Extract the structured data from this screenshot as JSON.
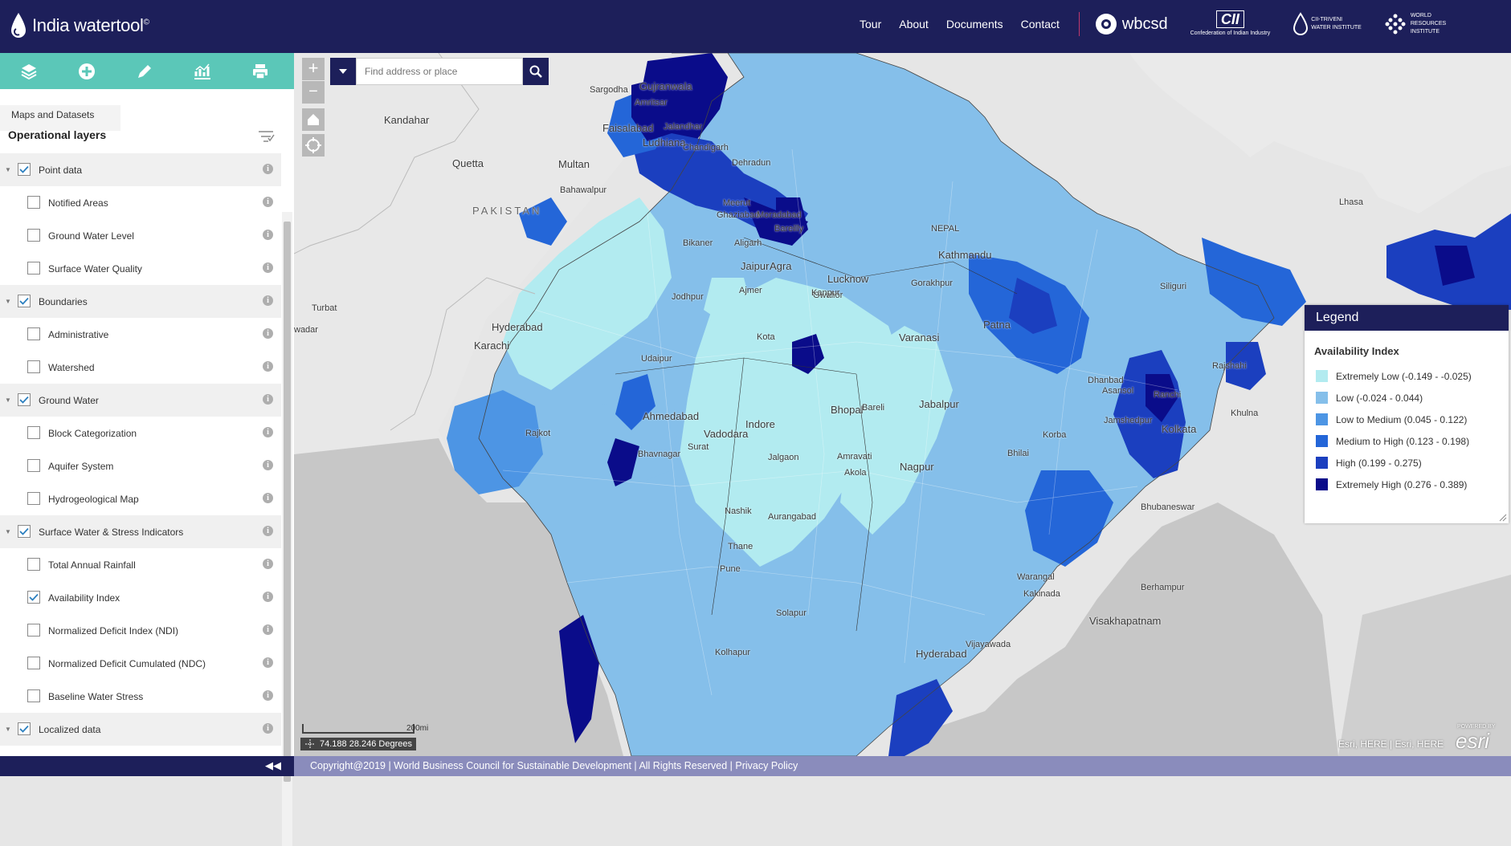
{
  "header": {
    "logo_text": "India watertool",
    "logo_mark": "©",
    "nav": [
      "Tour",
      "About",
      "Documents",
      "Contact"
    ],
    "partners": [
      {
        "name": "wbcsd",
        "sub": ""
      },
      {
        "name": "CII",
        "sub": "Confederation of Indian Industry"
      },
      {
        "name": "CII-TRIVENI",
        "sub": "WATER INSTITUTE"
      },
      {
        "name": "WORLD",
        "sub": "RESOURCES INSTITUTE"
      }
    ]
  },
  "toolbar": {
    "buttons": [
      "layers-icon",
      "add-icon",
      "edit-icon",
      "chart-icon",
      "print-icon"
    ]
  },
  "panel": {
    "tab_label": "Maps and Datasets",
    "title": "Operational layers",
    "layers": [
      {
        "label": "Point data",
        "type": "group",
        "checked": true
      },
      {
        "label": "Notified Areas",
        "type": "child",
        "checked": false
      },
      {
        "label": "Ground Water Level",
        "type": "child",
        "checked": false
      },
      {
        "label": "Surface Water Quality",
        "type": "child",
        "checked": false
      },
      {
        "label": "Boundaries",
        "type": "group",
        "checked": true
      },
      {
        "label": "Administrative",
        "type": "child",
        "checked": false
      },
      {
        "label": "Watershed",
        "type": "child",
        "checked": false
      },
      {
        "label": "Ground Water",
        "type": "group",
        "checked": true
      },
      {
        "label": "Block Categorization",
        "type": "child",
        "checked": false
      },
      {
        "label": "Aquifer System",
        "type": "child",
        "checked": false
      },
      {
        "label": "Hydrogeological Map",
        "type": "child",
        "checked": false
      },
      {
        "label": "Surface Water & Stress Indicators",
        "type": "group",
        "checked": true
      },
      {
        "label": "Total Annual Rainfall",
        "type": "child",
        "checked": false
      },
      {
        "label": "Availability Index",
        "type": "child",
        "checked": true
      },
      {
        "label": "Normalized Deficit Index (NDI)",
        "type": "child",
        "checked": false
      },
      {
        "label": "Normalized Deficit Cumulated (NDC)",
        "type": "child",
        "checked": false
      },
      {
        "label": "Baseline Water Stress",
        "type": "child",
        "checked": false
      },
      {
        "label": "Localized data",
        "type": "group",
        "checked": true
      }
    ]
  },
  "search": {
    "placeholder": "Find address or place"
  },
  "legend": {
    "title": "Legend",
    "subtitle": "Availability Index",
    "items": [
      {
        "label": "Extremely Low (-0.149 - -0.025)",
        "color": "#b2ebf0"
      },
      {
        "label": "Low (-0.024 - 0.044)",
        "color": "#85bfea"
      },
      {
        "label": "Low to Medium (0.045 - 0.122)",
        "color": "#4d95e4"
      },
      {
        "label": "Medium to High (0.123 - 0.198)",
        "color": "#2466d8"
      },
      {
        "label": "High (0.199 - 0.275)",
        "color": "#1b3fbf"
      },
      {
        "label": "Extremely High (0.276 - 0.389)",
        "color": "#0a0c8a"
      }
    ]
  },
  "map_labels": {
    "places": [
      "Sargodha",
      "Gujranwala",
      "Amritsar",
      "Kandahar",
      "Faisalabad",
      "Jalandhar",
      "Ludhiana",
      "Chandigarh",
      "Quetta",
      "Multan",
      "Dehradun",
      "Bahawalpur",
      "PAKISTAN",
      "Meerut",
      "Ghaziabad",
      "Moradabad",
      "Bareilly",
      "Lhasa",
      "NEPAL",
      "Bikaner",
      "Aligarh",
      "Kathmandu",
      "Jaipur",
      "Agra",
      "Lucknow",
      "Gorakhpur",
      "Siliguri",
      "Turbat",
      "Jodhpur",
      "Ajmer",
      "Gwalior",
      "Kanpur",
      "Hyderabad",
      "Patna",
      "Varanasi",
      "Karachi",
      "Kota",
      "Udaipur",
      "Rajshahi",
      "Dhanbad",
      "Asansol",
      "Ranchi",
      "Ahmedabad",
      "Bhopal",
      "Jabalpur",
      "Bareli",
      "Jamshedpur",
      "Khulna",
      "Rajkot",
      "Vadodara",
      "Indore",
      "Kolkata",
      "Korba",
      "Bhavnagar",
      "Surat",
      "Jalgaon",
      "Amravati",
      "Nagpur",
      "Bhilai",
      "Akola",
      "Nashik",
      "Aurangabad",
      "Bhubaneswar",
      "Thane",
      "Pune",
      "Warangal",
      "Berhampur",
      "Kakinada",
      "Solapur",
      "Hyderabad",
      "Visakhapatnam",
      "Kolhapur",
      "Vijayawada",
      "wadar"
    ],
    "scale": "200mi",
    "coords": "74.188 28.246 Degrees",
    "attribution": "Esri, HERE | Esri, HERE",
    "esri": "esri",
    "powered": "POWERED BY"
  },
  "footer": {
    "copyright": "Copyright@2019 | World Business Council for Sustainable Development | All Rights Reserved | Privacy Policy",
    "collapse": "◀◀"
  }
}
